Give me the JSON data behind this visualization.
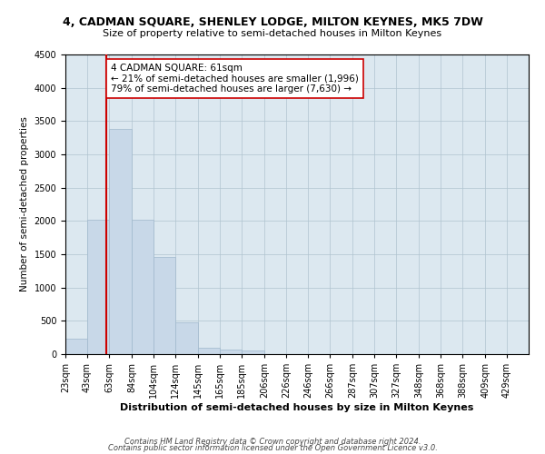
{
  "title": "4, CADMAN SQUARE, SHENLEY LODGE, MILTON KEYNES, MK5 7DW",
  "subtitle": "Size of property relative to semi-detached houses in Milton Keynes",
  "xlabel": "Distribution of semi-detached houses by size in Milton Keynes",
  "ylabel": "Number of semi-detached properties",
  "footer1": "Contains HM Land Registry data © Crown copyright and database right 2024.",
  "footer2": "Contains public sector information licensed under the Open Government Licence v3.0.",
  "annotation_title": "4 CADMAN SQUARE: 61sqm",
  "annotation_line1": "← 21% of semi-detached houses are smaller (1,996)",
  "annotation_line2": "79% of semi-detached houses are larger (7,630) →",
  "property_size": 61,
  "bar_color": "#c8d8e8",
  "bar_edge_color": "#a0b8cc",
  "marker_color": "#cc0000",
  "background_color": "#ffffff",
  "plot_bg_color": "#dce8f0",
  "grid_color": "#b0c4d0",
  "categories": [
    "23sqm",
    "43sqm",
    "63sqm",
    "84sqm",
    "104sqm",
    "124sqm",
    "145sqm",
    "165sqm",
    "185sqm",
    "206sqm",
    "226sqm",
    "246sqm",
    "266sqm",
    "287sqm",
    "307sqm",
    "327sqm",
    "348sqm",
    "368sqm",
    "388sqm",
    "409sqm",
    "429sqm"
  ],
  "bin_edges": [
    23,
    43,
    63,
    84,
    104,
    124,
    145,
    165,
    185,
    206,
    226,
    246,
    266,
    287,
    307,
    327,
    348,
    368,
    388,
    409,
    429
  ],
  "values": [
    230,
    2020,
    3380,
    2020,
    1460,
    480,
    100,
    75,
    55,
    0,
    0,
    0,
    0,
    0,
    0,
    0,
    0,
    0,
    0,
    0
  ],
  "ylim": [
    0,
    4500
  ],
  "yticks": [
    0,
    500,
    1000,
    1500,
    2000,
    2500,
    3000,
    3500,
    4000,
    4500
  ],
  "title_fontsize": 9,
  "subtitle_fontsize": 8,
  "xlabel_fontsize": 8,
  "ylabel_fontsize": 7.5,
  "tick_fontsize": 7,
  "footer_fontsize": 6,
  "annotation_fontsize": 7.5
}
